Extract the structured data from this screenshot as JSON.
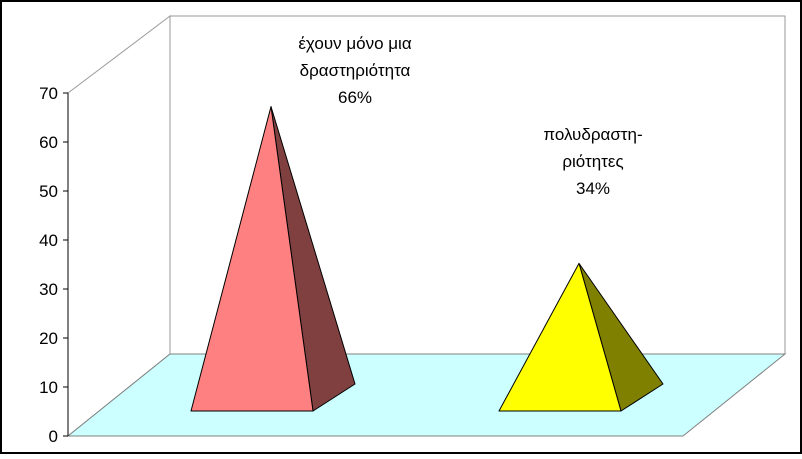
{
  "chart_data": {
    "type": "bar",
    "style": "3d-pyramid",
    "categories": [
      "έχουν μόνο μια δραστηριότητα",
      "πολυδραστη-ριότητες"
    ],
    "series": [
      {
        "values": [
          66,
          34
        ]
      }
    ],
    "data_labels": [
      [
        "έχουν μόνο μια",
        "δραστηριότητα",
        "66%"
      ],
      [
        "πολυδραστη-",
        "ριότητες",
        "34%"
      ]
    ],
    "yticks": [
      "0",
      "10",
      "20",
      "30",
      "40",
      "50",
      "60",
      "70"
    ],
    "ylim": [
      0,
      70
    ],
    "grid": false,
    "legend": "none",
    "colors": {
      "floor": "#ccffff",
      "bar1_front": "#ff8080",
      "bar1_side": "#804040",
      "bar2_front": "#ffff00",
      "bar2_side": "#808000",
      "frame": "#000000",
      "walls": "#ffffff",
      "wall_edge": "#999999"
    }
  }
}
